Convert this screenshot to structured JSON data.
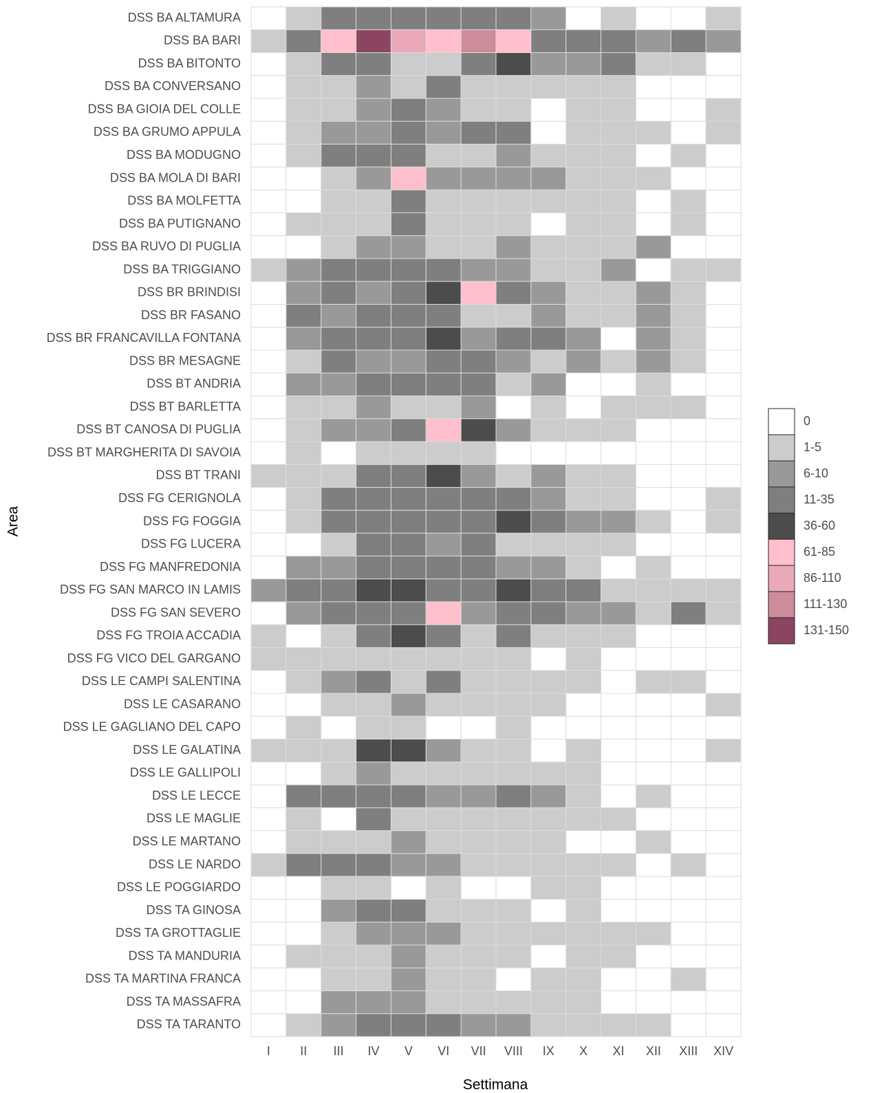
{
  "chart_data": {
    "type": "heatmap",
    "x_label": "Settimana",
    "y_label": "Area",
    "x": [
      "I",
      "II",
      "III",
      "IV",
      "V",
      "VI",
      "VII",
      "VIII",
      "IX",
      "X",
      "XI",
      "XII",
      "XIII",
      "XIV"
    ],
    "categories": [
      "DSS BA ALTAMURA",
      "DSS BA BARI",
      "DSS BA BITONTO",
      "DSS BA CONVERSANO",
      "DSS BA GIOIA DEL COLLE",
      "DSS BA GRUMO APPULA",
      "DSS BA MODUGNO",
      "DSS BA MOLA DI BARI",
      "DSS BA MOLFETTA",
      "DSS BA PUTIGNANO",
      "DSS BA RUVO DI PUGLIA",
      "DSS BA TRIGGIANO",
      "DSS BR BRINDISI",
      "DSS BR FASANO",
      "DSS BR FRANCAVILLA FONTANA",
      "DSS BR MESAGNE",
      "DSS BT ANDRIA",
      "DSS BT BARLETTA",
      "DSS BT CANOSA DI PUGLIA",
      "DSS BT MARGHERITA DI SAVOIA",
      "DSS BT TRANI",
      "DSS FG CERIGNOLA",
      "DSS FG FOGGIA",
      "DSS FG LUCERA",
      "DSS FG MANFREDONIA",
      "DSS FG SAN MARCO IN LAMIS",
      "DSS FG SAN SEVERO",
      "DSS FG TROIA ACCADIA",
      "DSS FG VICO DEL GARGANO",
      "DSS LE CAMPI SALENTINA",
      "DSS LE CASARANO",
      "DSS LE GAGLIANO DEL CAPO",
      "DSS LE GALATINA",
      "DSS LE GALLIPOLI",
      "DSS LE LECCE",
      "DSS LE MAGLIE",
      "DSS LE MARTANO",
      "DSS LE NARDO",
      "DSS LE POGGIARDO",
      "DSS TA GINOSA",
      "DSS TA GROTTAGLIE",
      "DSS TA MANDURIA",
      "DSS TA MARTINA FRANCA",
      "DSS TA MASSAFRA",
      "DSS TA TARANTO"
    ],
    "legend": [
      {
        "label": "0",
        "color": "#ffffff"
      },
      {
        "label": "1-5",
        "color": "#cccccc"
      },
      {
        "label": "6-10",
        "color": "#999999"
      },
      {
        "label": "11-35",
        "color": "#7f7f7f"
      },
      {
        "label": "36-60",
        "color": "#4c4c4c"
      },
      {
        "label": "61-85",
        "color": "#ffbfcc"
      },
      {
        "label": "86-110",
        "color": "#e9a9b8"
      },
      {
        "label": "111-130",
        "color": "#cc8c9a"
      },
      {
        "label": "131-150",
        "color": "#8b4560"
      }
    ],
    "z": [
      [
        "0",
        "1-5",
        "11-35",
        "11-35",
        "11-35",
        "11-35",
        "11-35",
        "11-35",
        "6-10",
        "0",
        "1-5",
        "0",
        "0",
        "1-5"
      ],
      [
        "1-5",
        "11-35",
        "61-85",
        "131-150",
        "86-110",
        "61-85",
        "111-130",
        "61-85",
        "11-35",
        "11-35",
        "11-35",
        "6-10",
        "11-35",
        "6-10"
      ],
      [
        "0",
        "1-5",
        "11-35",
        "11-35",
        "1-5",
        "1-5",
        "11-35",
        "36-60",
        "6-10",
        "6-10",
        "11-35",
        "1-5",
        "1-5",
        "0"
      ],
      [
        "0",
        "1-5",
        "1-5",
        "6-10",
        "1-5",
        "11-35",
        "1-5",
        "1-5",
        "1-5",
        "1-5",
        "1-5",
        "0",
        "0",
        "0"
      ],
      [
        "0",
        "1-5",
        "1-5",
        "6-10",
        "11-35",
        "6-10",
        "1-5",
        "1-5",
        "0",
        "1-5",
        "1-5",
        "0",
        "0",
        "1-5"
      ],
      [
        "0",
        "1-5",
        "6-10",
        "6-10",
        "11-35",
        "6-10",
        "11-35",
        "11-35",
        "0",
        "1-5",
        "1-5",
        "1-5",
        "0",
        "1-5"
      ],
      [
        "0",
        "1-5",
        "11-35",
        "11-35",
        "11-35",
        "1-5",
        "1-5",
        "6-10",
        "1-5",
        "1-5",
        "1-5",
        "0",
        "1-5",
        "0"
      ],
      [
        "0",
        "0",
        "1-5",
        "6-10",
        "61-85",
        "6-10",
        "6-10",
        "6-10",
        "6-10",
        "1-5",
        "1-5",
        "1-5",
        "0",
        "0"
      ],
      [
        "0",
        "0",
        "1-5",
        "1-5",
        "11-35",
        "1-5",
        "1-5",
        "1-5",
        "1-5",
        "1-5",
        "1-5",
        "0",
        "1-5",
        "0"
      ],
      [
        "0",
        "1-5",
        "1-5",
        "1-5",
        "11-35",
        "1-5",
        "1-5",
        "1-5",
        "0",
        "1-5",
        "1-5",
        "0",
        "1-5",
        "0"
      ],
      [
        "0",
        "0",
        "1-5",
        "6-10",
        "6-10",
        "1-5",
        "1-5",
        "6-10",
        "1-5",
        "1-5",
        "1-5",
        "6-10",
        "0",
        "0"
      ],
      [
        "1-5",
        "6-10",
        "11-35",
        "11-35",
        "11-35",
        "11-35",
        "6-10",
        "6-10",
        "1-5",
        "1-5",
        "6-10",
        "0",
        "1-5",
        "1-5"
      ],
      [
        "0",
        "6-10",
        "11-35",
        "6-10",
        "11-35",
        "36-60",
        "61-85",
        "11-35",
        "6-10",
        "1-5",
        "1-5",
        "6-10",
        "1-5",
        "0"
      ],
      [
        "0",
        "11-35",
        "6-10",
        "11-35",
        "11-35",
        "11-35",
        "1-5",
        "1-5",
        "6-10",
        "1-5",
        "1-5",
        "6-10",
        "1-5",
        "0"
      ],
      [
        "0",
        "6-10",
        "11-35",
        "11-35",
        "11-35",
        "36-60",
        "6-10",
        "11-35",
        "11-35",
        "6-10",
        "0",
        "6-10",
        "1-5",
        "0"
      ],
      [
        "0",
        "1-5",
        "11-35",
        "6-10",
        "6-10",
        "11-35",
        "11-35",
        "6-10",
        "1-5",
        "6-10",
        "1-5",
        "6-10",
        "1-5",
        "0"
      ],
      [
        "0",
        "6-10",
        "6-10",
        "11-35",
        "11-35",
        "11-35",
        "11-35",
        "1-5",
        "6-10",
        "0",
        "0",
        "1-5",
        "0",
        "0"
      ],
      [
        "0",
        "1-5",
        "1-5",
        "6-10",
        "1-5",
        "1-5",
        "6-10",
        "0",
        "1-5",
        "0",
        "1-5",
        "1-5",
        "1-5",
        "0"
      ],
      [
        "0",
        "1-5",
        "6-10",
        "6-10",
        "11-35",
        "61-85",
        "36-60",
        "6-10",
        "1-5",
        "1-5",
        "1-5",
        "0",
        "0",
        "0"
      ],
      [
        "0",
        "1-5",
        "0",
        "1-5",
        "1-5",
        "1-5",
        "1-5",
        "0",
        "0",
        "0",
        "0",
        "0",
        "0",
        "0"
      ],
      [
        "1-5",
        "1-5",
        "1-5",
        "11-35",
        "11-35",
        "36-60",
        "6-10",
        "1-5",
        "6-10",
        "1-5",
        "1-5",
        "0",
        "0",
        "0"
      ],
      [
        "0",
        "1-5",
        "11-35",
        "11-35",
        "11-35",
        "11-35",
        "11-35",
        "11-35",
        "6-10",
        "1-5",
        "1-5",
        "0",
        "0",
        "1-5"
      ],
      [
        "0",
        "1-5",
        "11-35",
        "11-35",
        "11-35",
        "11-35",
        "11-35",
        "36-60",
        "11-35",
        "6-10",
        "6-10",
        "1-5",
        "0",
        "1-5"
      ],
      [
        "0",
        "0",
        "1-5",
        "11-35",
        "11-35",
        "6-10",
        "11-35",
        "1-5",
        "1-5",
        "1-5",
        "1-5",
        "0",
        "0",
        "0"
      ],
      [
        "0",
        "6-10",
        "6-10",
        "11-35",
        "11-35",
        "11-35",
        "11-35",
        "6-10",
        "6-10",
        "1-5",
        "0",
        "1-5",
        "0",
        "0"
      ],
      [
        "6-10",
        "11-35",
        "11-35",
        "36-60",
        "36-60",
        "11-35",
        "11-35",
        "36-60",
        "11-35",
        "11-35",
        "1-5",
        "1-5",
        "1-5",
        "1-5"
      ],
      [
        "0",
        "6-10",
        "11-35",
        "11-35",
        "11-35",
        "61-85",
        "6-10",
        "11-35",
        "11-35",
        "6-10",
        "6-10",
        "1-5",
        "11-35",
        "1-5"
      ],
      [
        "1-5",
        "0",
        "1-5",
        "11-35",
        "36-60",
        "11-35",
        "1-5",
        "11-35",
        "1-5",
        "1-5",
        "1-5",
        "0",
        "0",
        "0"
      ],
      [
        "1-5",
        "1-5",
        "1-5",
        "1-5",
        "1-5",
        "1-5",
        "1-5",
        "1-5",
        "0",
        "1-5",
        "0",
        "0",
        "0",
        "0"
      ],
      [
        "0",
        "1-5",
        "6-10",
        "11-35",
        "1-5",
        "11-35",
        "1-5",
        "1-5",
        "1-5",
        "1-5",
        "0",
        "1-5",
        "1-5",
        "0"
      ],
      [
        "0",
        "0",
        "1-5",
        "1-5",
        "6-10",
        "1-5",
        "1-5",
        "1-5",
        "1-5",
        "0",
        "0",
        "0",
        "0",
        "1-5"
      ],
      [
        "0",
        "1-5",
        "0",
        "1-5",
        "1-5",
        "0",
        "0",
        "1-5",
        "0",
        "0",
        "0",
        "0",
        "0",
        "0"
      ],
      [
        "1-5",
        "1-5",
        "1-5",
        "36-60",
        "36-60",
        "6-10",
        "1-5",
        "1-5",
        "0",
        "1-5",
        "0",
        "0",
        "0",
        "1-5"
      ],
      [
        "0",
        "0",
        "1-5",
        "6-10",
        "1-5",
        "1-5",
        "1-5",
        "1-5",
        "1-5",
        "1-5",
        "0",
        "0",
        "0",
        "0"
      ],
      [
        "0",
        "11-35",
        "11-35",
        "11-35",
        "11-35",
        "6-10",
        "6-10",
        "11-35",
        "6-10",
        "1-5",
        "0",
        "1-5",
        "0",
        "0"
      ],
      [
        "0",
        "1-5",
        "0",
        "11-35",
        "1-5",
        "1-5",
        "1-5",
        "1-5",
        "1-5",
        "1-5",
        "1-5",
        "0",
        "0",
        "0"
      ],
      [
        "0",
        "1-5",
        "1-5",
        "1-5",
        "6-10",
        "1-5",
        "1-5",
        "1-5",
        "1-5",
        "0",
        "0",
        "1-5",
        "0",
        "0"
      ],
      [
        "1-5",
        "11-35",
        "11-35",
        "11-35",
        "6-10",
        "6-10",
        "1-5",
        "1-5",
        "1-5",
        "1-5",
        "1-5",
        "0",
        "1-5",
        "0"
      ],
      [
        "0",
        "0",
        "1-5",
        "1-5",
        "0",
        "1-5",
        "0",
        "0",
        "1-5",
        "1-5",
        "0",
        "0",
        "0",
        "0"
      ],
      [
        "0",
        "0",
        "6-10",
        "11-35",
        "11-35",
        "1-5",
        "1-5",
        "1-5",
        "0",
        "1-5",
        "0",
        "0",
        "0",
        "0"
      ],
      [
        "0",
        "0",
        "1-5",
        "6-10",
        "6-10",
        "6-10",
        "1-5",
        "1-5",
        "1-5",
        "1-5",
        "1-5",
        "1-5",
        "0",
        "0"
      ],
      [
        "0",
        "1-5",
        "1-5",
        "1-5",
        "6-10",
        "1-5",
        "1-5",
        "1-5",
        "0",
        "1-5",
        "1-5",
        "0",
        "0",
        "0"
      ],
      [
        "0",
        "0",
        "1-5",
        "1-5",
        "6-10",
        "1-5",
        "1-5",
        "0",
        "1-5",
        "1-5",
        "0",
        "0",
        "1-5",
        "0"
      ],
      [
        "0",
        "0",
        "6-10",
        "6-10",
        "6-10",
        "1-5",
        "1-5",
        "1-5",
        "1-5",
        "1-5",
        "0",
        "0",
        "0",
        "0"
      ],
      [
        "0",
        "1-5",
        "6-10",
        "11-35",
        "11-35",
        "11-35",
        "6-10",
        "6-10",
        "1-5",
        "1-5",
        "1-5",
        "1-5",
        "0",
        "0"
      ]
    ]
  }
}
